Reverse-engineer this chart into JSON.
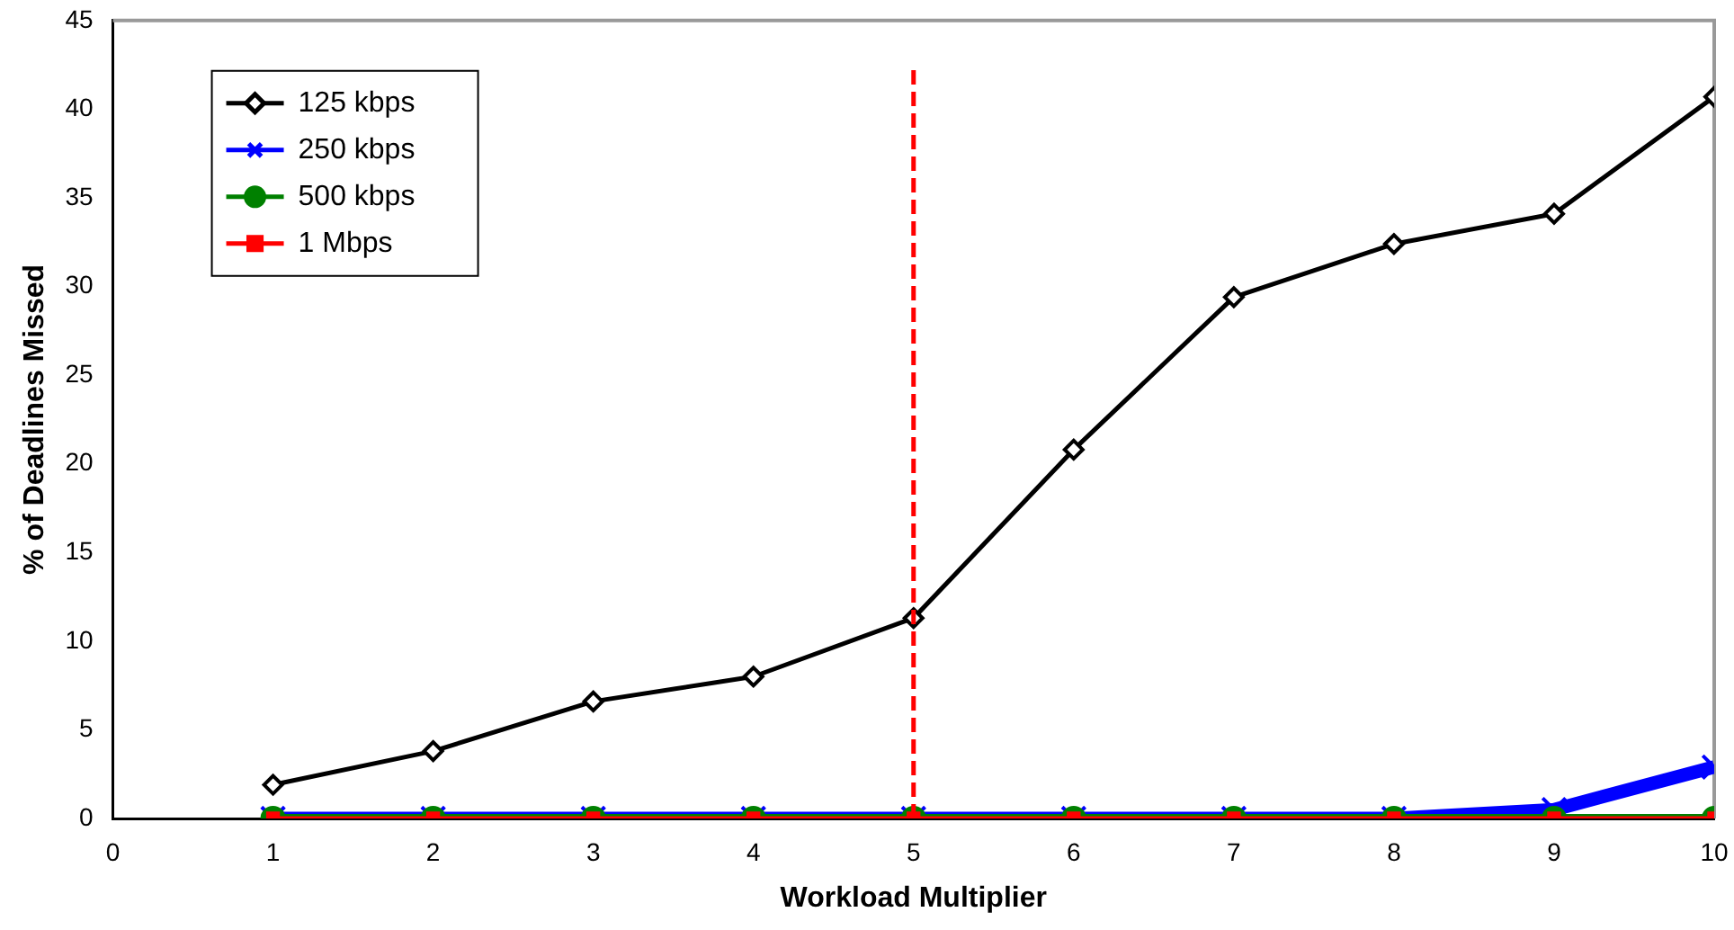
{
  "chart_data": {
    "type": "line",
    "xlabel": "Workload Multiplier",
    "ylabel": "% of Deadlines Missed",
    "x": [
      1,
      2,
      3,
      4,
      5,
      6,
      7,
      8,
      9,
      10
    ],
    "series": [
      {
        "name": "125 kbps",
        "color": "#000000",
        "marker": "diamond",
        "values": [
          1.9,
          3.8,
          6.6,
          8.0,
          11.3,
          20.8,
          29.4,
          32.4,
          34.1,
          40.7
        ]
      },
      {
        "name": "250 kbps",
        "color": "#0000ff",
        "marker": "cross",
        "values": [
          0,
          0,
          0,
          0,
          0,
          0,
          0,
          0,
          0.5,
          2.9
        ]
      },
      {
        "name": "500 kbps",
        "color": "#008000",
        "marker": "circle",
        "values": [
          0,
          0,
          0,
          0,
          0,
          0,
          0,
          0,
          0,
          0
        ]
      },
      {
        "name": "1 Mbps",
        "color": "#ff0000",
        "marker": "square",
        "values": [
          0,
          0,
          0,
          0,
          0,
          0,
          0,
          0,
          0,
          0
        ]
      }
    ],
    "xlim": [
      0,
      10
    ],
    "xticks": [
      0,
      1,
      2,
      3,
      4,
      5,
      6,
      7,
      8,
      9,
      10
    ],
    "ylim": [
      0,
      45
    ],
    "yticks": [
      0,
      5,
      10,
      15,
      20,
      25,
      30,
      35,
      40,
      45
    ],
    "ref_lines": [
      {
        "axis": "x",
        "value": 5,
        "color": "#ff0000",
        "line_style": "dashed"
      }
    ],
    "grid": false,
    "legend": "top left",
    "line_style": "solid"
  }
}
